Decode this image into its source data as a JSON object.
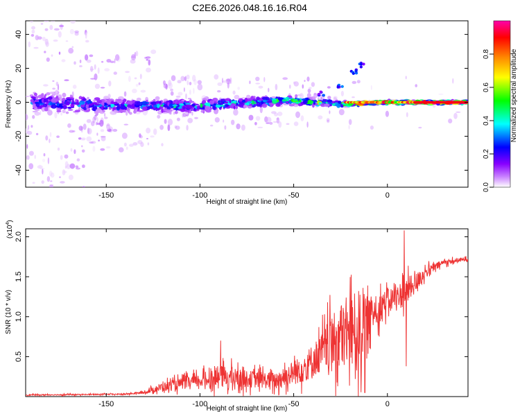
{
  "title": "C2E6.2026.048.16.16.R04",
  "colors": {
    "snr_line": "#ee3333",
    "series_low": "#8a2be2",
    "background": "#ffffff"
  },
  "chart_data": [
    {
      "type": "heatmap",
      "title": "C2E6.2026.048.16.16.R04",
      "xlabel": "Height of straight line (km)",
      "ylabel": "Frequency (Hz)",
      "xlim": [
        -193,
        43
      ],
      "ylim": [
        -50,
        48
      ],
      "xticks": [
        -150,
        -100,
        -50,
        0
      ],
      "yticks": [
        -40,
        -20,
        0,
        20,
        40
      ],
      "colorbar": {
        "label": "Normalized spectral amplitude",
        "range": [
          0.0,
          1.0
        ],
        "ticks": [
          "0.0",
          "0.2",
          "0.4",
          "0.6",
          "0.8"
        ],
        "tick_values": [
          0.0,
          0.2,
          0.4,
          0.6,
          0.8
        ],
        "colormap": [
          "#ffffff",
          "#cc88ff",
          "#8800ff",
          "#0000ff",
          "#00ffff",
          "#00ff00",
          "#ffff00",
          "#ff8800",
          "#ff0000",
          "#ff00aa"
        ]
      },
      "ridge": [
        {
          "x": -185,
          "center": 0,
          "spread": 8,
          "amplitude": 0.3
        },
        {
          "x": -150,
          "center": -2,
          "spread": 6,
          "amplitude": 0.35
        },
        {
          "x": -100,
          "center": -2,
          "spread": 5,
          "amplitude": 0.4
        },
        {
          "x": -75,
          "center": 0,
          "spread": 4,
          "amplitude": 0.45
        },
        {
          "x": -50,
          "center": 1,
          "spread": 3.5,
          "amplitude": 0.5
        },
        {
          "x": -25,
          "center": -1,
          "spread": 2,
          "amplitude": 0.6
        },
        {
          "x": 0,
          "center": 0,
          "spread": 1.2,
          "amplitude": 0.9
        },
        {
          "x": 40,
          "center": 0,
          "spread": 1,
          "amplitude": 0.95
        }
      ],
      "upper_branch": [
        {
          "x": -35,
          "y": 5
        },
        {
          "x": -25,
          "y": 10
        },
        {
          "x": -18,
          "y": 18
        },
        {
          "x": -14,
          "y": 22
        }
      ]
    },
    {
      "type": "line",
      "xlabel": "Height of straight line (km)",
      "ylabel": "SNR (10 * v/v)",
      "yscale_label": "(x10",
      "yscale_exp": "4",
      "xlim": [
        -193,
        43
      ],
      "ylim": [
        0,
        2.1
      ],
      "xticks": [
        -150,
        -100,
        -50,
        0
      ],
      "yticks": [
        0.5,
        1.0,
        1.5,
        2.0
      ],
      "ytick_labels": [
        "0.5",
        "1.0",
        "1.5",
        "2.0"
      ],
      "series": [
        {
          "name": "SNR",
          "envelope": [
            {
              "x": -193,
              "base": 0.02,
              "noise": 0.01
            },
            {
              "x": -140,
              "base": 0.03,
              "noise": 0.01
            },
            {
              "x": -130,
              "base": 0.05,
              "noise": 0.02
            },
            {
              "x": -120,
              "base": 0.12,
              "noise": 0.08
            },
            {
              "x": -100,
              "base": 0.2,
              "noise": 0.12
            },
            {
              "x": -88,
              "base": 0.25,
              "noise": 0.2
            },
            {
              "x": -75,
              "base": 0.22,
              "noise": 0.15
            },
            {
              "x": -60,
              "base": 0.2,
              "noise": 0.15
            },
            {
              "x": -45,
              "base": 0.35,
              "noise": 0.25
            },
            {
              "x": -35,
              "base": 0.55,
              "noise": 0.35
            },
            {
              "x": -25,
              "base": 0.75,
              "noise": 0.6
            },
            {
              "x": -15,
              "base": 0.85,
              "noise": 0.7
            },
            {
              "x": -10,
              "base": 1.0,
              "noise": 0.35
            },
            {
              "x": 0,
              "base": 1.2,
              "noise": 0.2
            },
            {
              "x": 10,
              "base": 1.3,
              "noise": 0.25
            },
            {
              "x": 20,
              "base": 1.55,
              "noise": 0.1
            },
            {
              "x": 30,
              "base": 1.68,
              "noise": 0.05
            },
            {
              "x": 43,
              "base": 1.72,
              "noise": 0.03
            }
          ],
          "features": [
            {
              "x": 9,
              "y": 2.08
            },
            {
              "x": 10,
              "y": 0.38
            },
            {
              "x": -12,
              "y": 0.05
            },
            {
              "x": -89,
              "y": 0.7
            }
          ]
        }
      ]
    }
  ]
}
